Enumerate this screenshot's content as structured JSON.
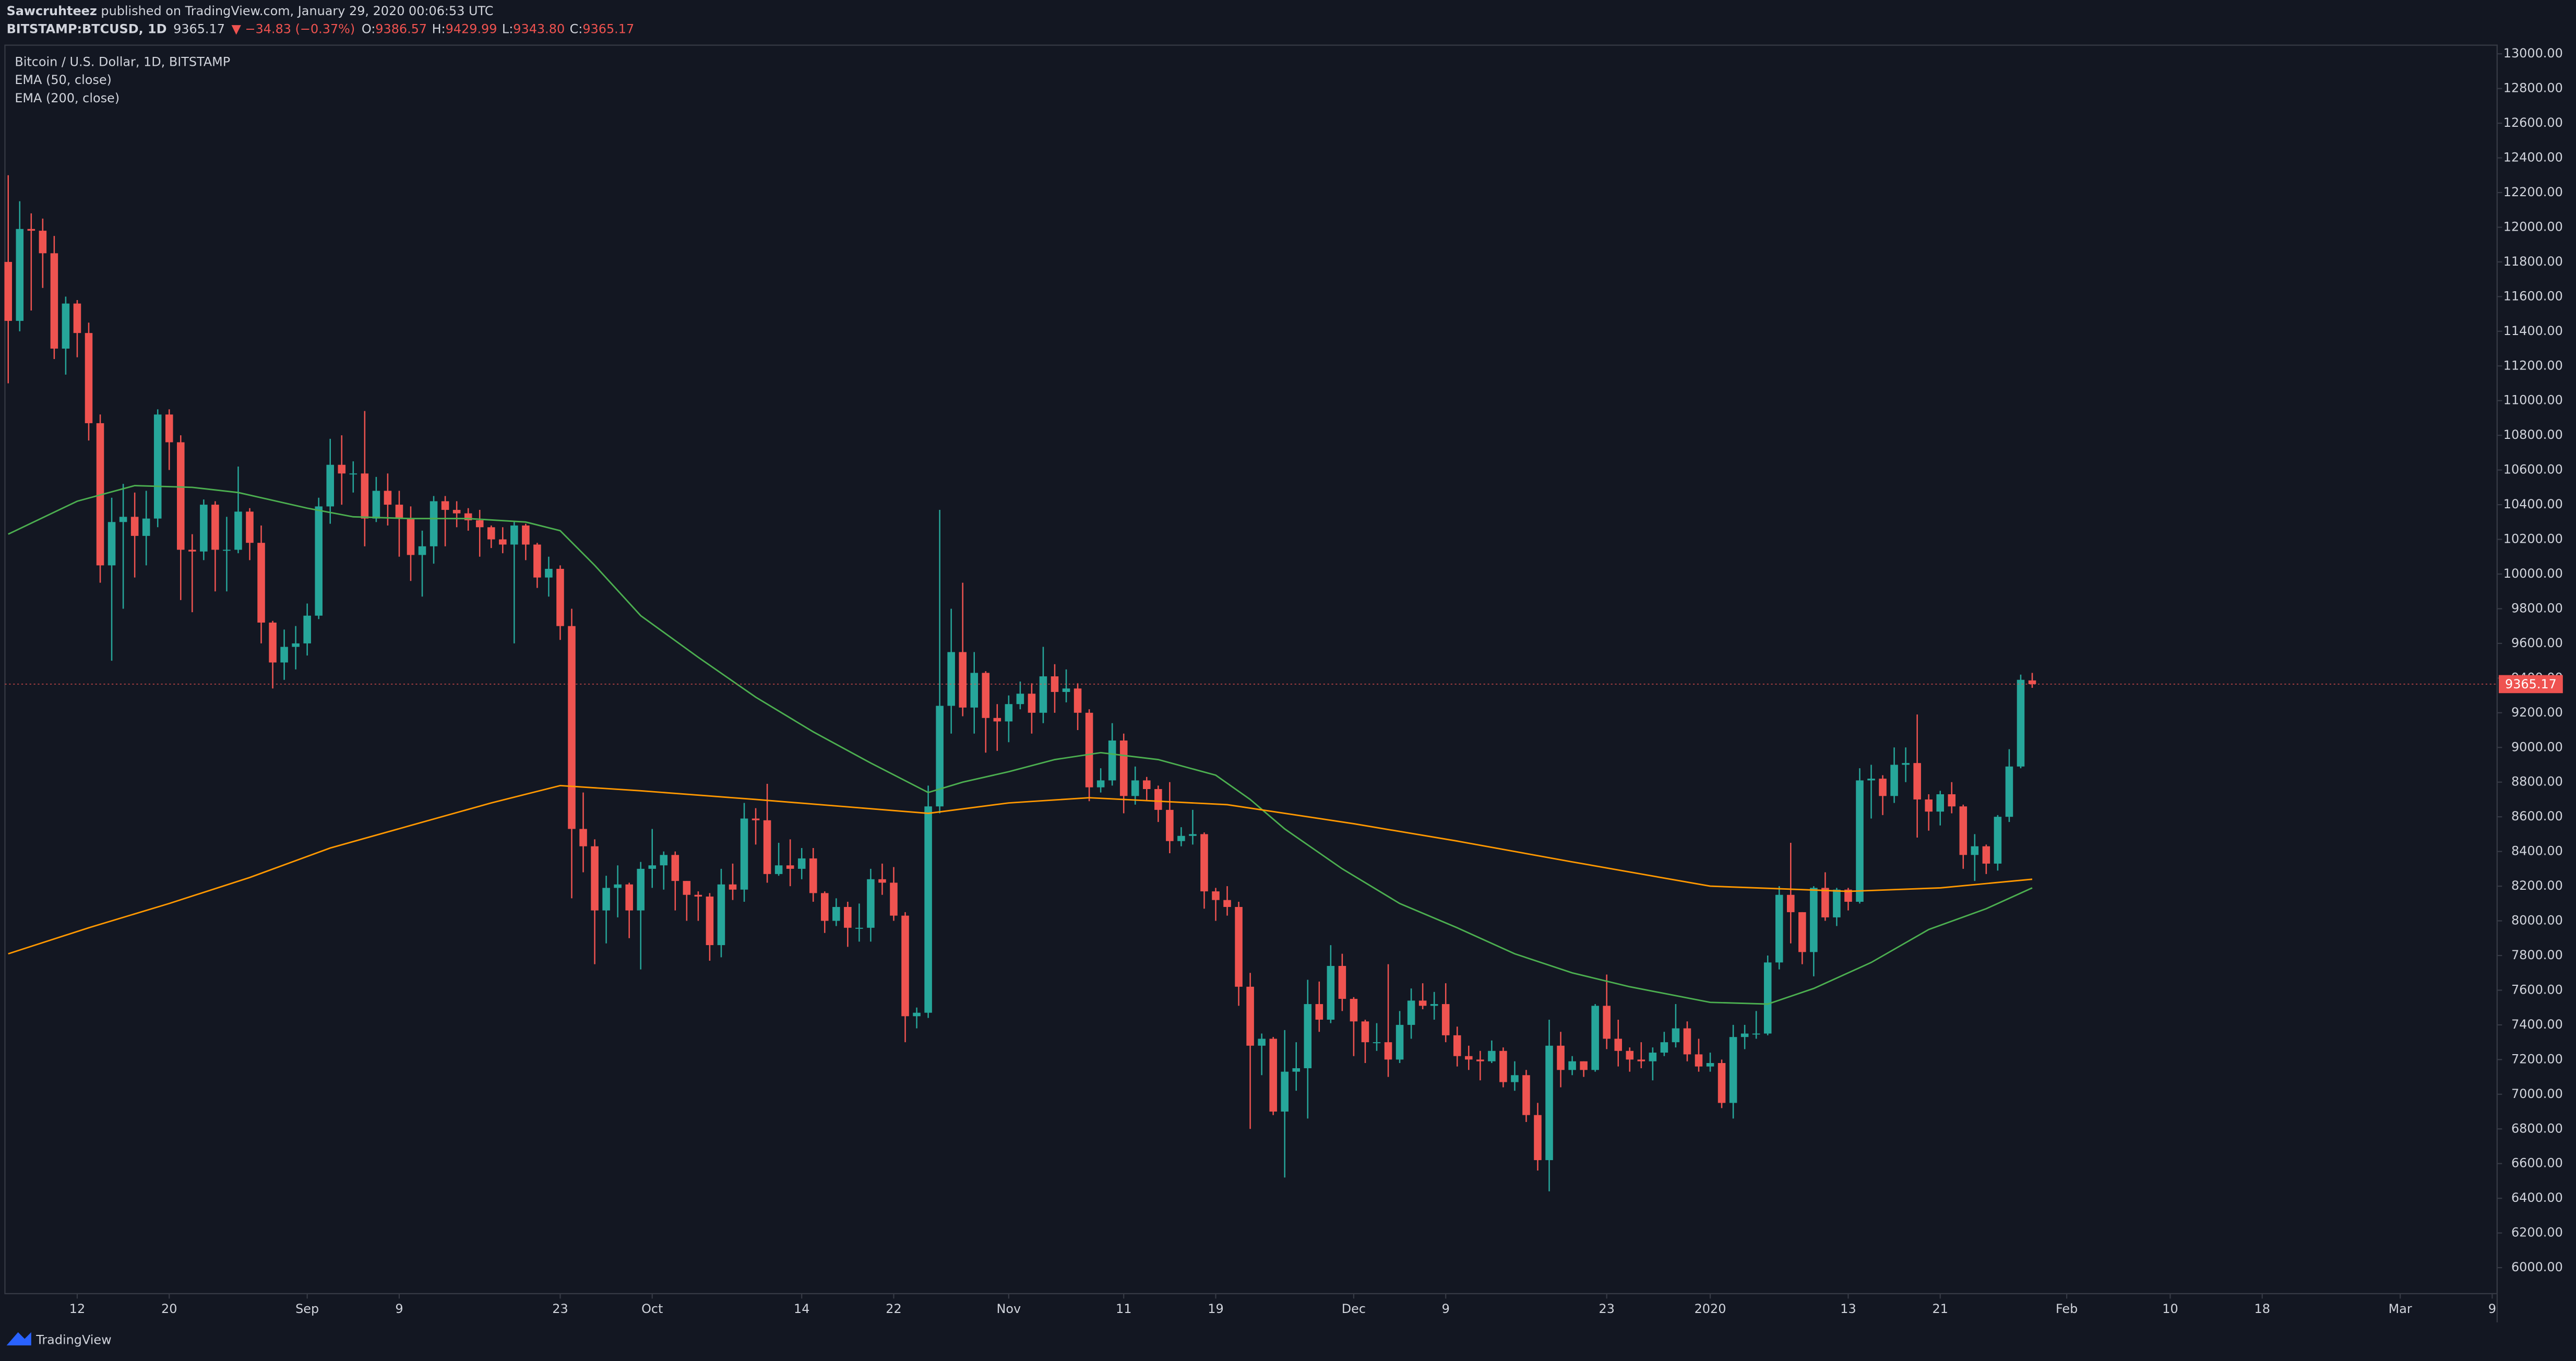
{
  "header": {
    "author": "Sawcruhteez",
    "published": " published on TradingView.com, January 29, 2020 00:06:53 UTC",
    "symbol": "BITSTAMP:BTCUSD, 1D",
    "last": "9365.17",
    "change": "▼ −34.83 (−0.37%)",
    "ohlc": [
      {
        "label": "O:",
        "value": "9386.57"
      },
      {
        "label": "H:",
        "value": "9429.99"
      },
      {
        "label": "L:",
        "value": "9343.80"
      },
      {
        "label": "C:",
        "value": "9365.17"
      }
    ],
    "brand": "TradingView"
  },
  "chart_data": {
    "type": "candlestick",
    "title": "Bitcoin / U.S. Dollar, 1D, BITSTAMP",
    "up_color": "#26a69a",
    "down_color": "#ef5350",
    "grid": false,
    "x": [
      "2019-08-06",
      "2019-08-07",
      "2019-08-08",
      "2019-08-09",
      "2019-08-10",
      "2019-08-11",
      "2019-08-12",
      "2019-08-13",
      "2019-08-14",
      "2019-08-15",
      "2019-08-16",
      "2019-08-17",
      "2019-08-18",
      "2019-08-19",
      "2019-08-20",
      "2019-08-21",
      "2019-08-22",
      "2019-08-23",
      "2019-08-24",
      "2019-08-25",
      "2019-08-26",
      "2019-08-27",
      "2019-08-28",
      "2019-08-29",
      "2019-08-30",
      "2019-08-31",
      "2019-09-01",
      "2019-09-02",
      "2019-09-03",
      "2019-09-04",
      "2019-09-05",
      "2019-09-06",
      "2019-09-07",
      "2019-09-08",
      "2019-09-09",
      "2019-09-10",
      "2019-09-11",
      "2019-09-12",
      "2019-09-13",
      "2019-09-14",
      "2019-09-15",
      "2019-09-16",
      "2019-09-17",
      "2019-09-18",
      "2019-09-19",
      "2019-09-20",
      "2019-09-21",
      "2019-09-22",
      "2019-09-23",
      "2019-09-24",
      "2019-09-25",
      "2019-09-26",
      "2019-09-27",
      "2019-09-28",
      "2019-09-29",
      "2019-09-30",
      "2019-10-01",
      "2019-10-02",
      "2019-10-03",
      "2019-10-04",
      "2019-10-05",
      "2019-10-06",
      "2019-10-07",
      "2019-10-08",
      "2019-10-09",
      "2019-10-10",
      "2019-10-11",
      "2019-10-12",
      "2019-10-13",
      "2019-10-14",
      "2019-10-15",
      "2019-10-16",
      "2019-10-17",
      "2019-10-18",
      "2019-10-19",
      "2019-10-20",
      "2019-10-21",
      "2019-10-22",
      "2019-10-23",
      "2019-10-24",
      "2019-10-25",
      "2019-10-26",
      "2019-10-27",
      "2019-10-28",
      "2019-10-29",
      "2019-10-30",
      "2019-10-31",
      "2019-11-01",
      "2019-11-02",
      "2019-11-03",
      "2019-11-04",
      "2019-11-05",
      "2019-11-06",
      "2019-11-07",
      "2019-11-08",
      "2019-11-09",
      "2019-11-10",
      "2019-11-11",
      "2019-11-12",
      "2019-11-13",
      "2019-11-14",
      "2019-11-15",
      "2019-11-16",
      "2019-11-17",
      "2019-11-18",
      "2019-11-19",
      "2019-11-20",
      "2019-11-21",
      "2019-11-22",
      "2019-11-23",
      "2019-11-24",
      "2019-11-25",
      "2019-11-26",
      "2019-11-27",
      "2019-11-28",
      "2019-11-29",
      "2019-11-30",
      "2019-12-01",
      "2019-12-02",
      "2019-12-03",
      "2019-12-04",
      "2019-12-05",
      "2019-12-06",
      "2019-12-07",
      "2019-12-08",
      "2019-12-09",
      "2019-12-10",
      "2019-12-11",
      "2019-12-12",
      "2019-12-13",
      "2019-12-14",
      "2019-12-15",
      "2019-12-16",
      "2019-12-17",
      "2019-12-18",
      "2019-12-19",
      "2019-12-20",
      "2019-12-21",
      "2019-12-22",
      "2019-12-23",
      "2019-12-24",
      "2019-12-25",
      "2019-12-26",
      "2019-12-27",
      "2019-12-28",
      "2019-12-29",
      "2019-12-30",
      "2019-12-31",
      "2020-01-01",
      "2020-01-02",
      "2020-01-03",
      "2020-01-04",
      "2020-01-05",
      "2020-01-06",
      "2020-01-07",
      "2020-01-08",
      "2020-01-09",
      "2020-01-10",
      "2020-01-11",
      "2020-01-12",
      "2020-01-13",
      "2020-01-14",
      "2020-01-15",
      "2020-01-16",
      "2020-01-17",
      "2020-01-18",
      "2020-01-19",
      "2020-01-20",
      "2020-01-21",
      "2020-01-22",
      "2020-01-23",
      "2020-01-24",
      "2020-01-25",
      "2020-01-26",
      "2020-01-27",
      "2020-01-28",
      "2020-01-29"
    ],
    "open": [
      11800,
      11460,
      11990,
      11980,
      11850,
      11300,
      11560,
      11390,
      10870,
      10050,
      10300,
      10330,
      10220,
      10320,
      10920,
      10760,
      10140,
      10130,
      10400,
      10140,
      10140,
      10360,
      10180,
      9720,
      9490,
      9580,
      9600,
      9760,
      10390,
      10630,
      10580,
      10580,
      10320,
      10480,
      10400,
      10320,
      10110,
      10160,
      10420,
      10370,
      10350,
      10310,
      10270,
      10200,
      10170,
      10280,
      10170,
      9980,
      10030,
      9700,
      8530,
      8430,
      8060,
      8190,
      8210,
      8060,
      8300,
      8320,
      8380,
      8230,
      8150,
      8140,
      7860,
      8210,
      8180,
      8590,
      8580,
      8270,
      8320,
      8300,
      8360,
      8160,
      8000,
      8080,
      7960,
      7960,
      8240,
      8220,
      8030,
      7450,
      7470,
      8660,
      9240,
      9550,
      9230,
      9430,
      9170,
      9150,
      9250,
      9310,
      9200,
      9410,
      9320,
      9340,
      9200,
      8770,
      8810,
      9040,
      8720,
      8810,
      8760,
      8640,
      8460,
      8490,
      8500,
      8170,
      8120,
      8080,
      7620,
      7280,
      7320,
      6900,
      7130,
      7150,
      7520,
      7430,
      7740,
      7550,
      7420,
      7300,
      7300,
      7200,
      7400,
      7540,
      7510,
      7520,
      7340,
      7220,
      7200,
      7190,
      7250,
      7070,
      7110,
      6880,
      6620,
      7280,
      7140,
      7190,
      7140,
      7510,
      7320,
      7250,
      7200,
      7190,
      7240,
      7300,
      7380,
      7230,
      7160,
      7180,
      6950,
      7330,
      7350,
      7350,
      7760,
      8150,
      8050,
      7820,
      8190,
      8020,
      8180,
      8110,
      8810,
      8820,
      8720,
      8900,
      8910,
      8700,
      8630,
      8730,
      8660,
      8380,
      8430,
      8330,
      8600,
      8890,
      9386.57
    ],
    "high": [
      12300,
      12150,
      12080,
      12050,
      11950,
      11600,
      11580,
      11450,
      10920,
      10440,
      10520,
      10470,
      10480,
      10950,
      10950,
      10800,
      10230,
      10430,
      10420,
      10330,
      10620,
      10380,
      10280,
      9730,
      9680,
      9700,
      9830,
      10440,
      10780,
      10800,
      10650,
      10940,
      10560,
      10580,
      10480,
      10390,
      10250,
      10450,
      10450,
      10420,
      10380,
      10370,
      10280,
      10270,
      10300,
      10290,
      10180,
      10100,
      10050,
      9800,
      8740,
      8470,
      8260,
      8320,
      8220,
      8340,
      8530,
      8400,
      8400,
      8230,
      8170,
      8160,
      8300,
      8330,
      8680,
      8650,
      8790,
      8450,
      8470,
      8420,
      8420,
      8170,
      8130,
      8110,
      8100,
      8300,
      8330,
      8310,
      8050,
      7500,
      8780,
      10370,
      9800,
      9950,
      9550,
      9440,
      9250,
      9300,
      9380,
      9370,
      9580,
      9480,
      9450,
      9370,
      9220,
      8880,
      9140,
      9080,
      8890,
      8830,
      8780,
      8800,
      8540,
      8640,
      8510,
      8190,
      8200,
      8110,
      7700,
      7350,
      7330,
      7370,
      7300,
      7660,
      7650,
      7860,
      7810,
      7560,
      7430,
      7410,
      7750,
      7480,
      7610,
      7640,
      7590,
      7640,
      7390,
      7280,
      7250,
      7310,
      7270,
      7190,
      7140,
      6950,
      7430,
      7360,
      7220,
      7190,
      7520,
      7690,
      7430,
      7270,
      7300,
      7270,
      7360,
      7520,
      7420,
      7320,
      7240,
      7200,
      7400,
      7400,
      7480,
      7800,
      8200,
      8450,
      8050,
      8200,
      8280,
      8190,
      8190,
      8880,
      8900,
      8840,
      9000,
      9000,
      9190,
      8730,
      8750,
      8800,
      8670,
      8500,
      8440,
      8610,
      8990,
      9420,
      9429.99
    ],
    "low": [
      11100,
      11400,
      11520,
      11650,
      11240,
      11150,
      11250,
      10770,
      9950,
      9500,
      9800,
      9980,
      10050,
      10270,
      10600,
      9850,
      9780,
      10080,
      9900,
      9900,
      10120,
      10080,
      9600,
      9340,
      9390,
      9450,
      9530,
      9740,
      10290,
      10400,
      10470,
      10160,
      10300,
      10280,
      10100,
      9960,
      9870,
      10060,
      10160,
      10270,
      10250,
      10100,
      10150,
      10120,
      9600,
      10080,
      9920,
      9870,
      9620,
      8130,
      8280,
      7750,
      7870,
      8020,
      7900,
      7720,
      8190,
      8180,
      8060,
      8000,
      8000,
      7770,
      7790,
      8120,
      8110,
      8440,
      8220,
      8260,
      8200,
      8240,
      8110,
      7930,
      7970,
      7850,
      7880,
      7880,
      8150,
      8000,
      7300,
      7380,
      7440,
      8620,
      9080,
      9180,
      9080,
      8970,
      8980,
      9030,
      9220,
      9080,
      9140,
      9200,
      9260,
      9100,
      8690,
      8740,
      8780,
      8620,
      8670,
      8690,
      8570,
      8390,
      8430,
      8440,
      8070,
      8000,
      8030,
      7510,
      6800,
      7110,
      6880,
      6520,
      7020,
      6860,
      7360,
      7410,
      7480,
      7220,
      7180,
      7250,
      7100,
      7180,
      7320,
      7490,
      7430,
      7300,
      7160,
      7140,
      7080,
      7180,
      7040,
      7020,
      6840,
      6560,
      6440,
      7040,
      7110,
      7100,
      7130,
      7260,
      7160,
      7130,
      7150,
      7080,
      7220,
      7270,
      7190,
      7130,
      7130,
      6920,
      6860,
      7260,
      7320,
      7340,
      7720,
      7870,
      7750,
      7680,
      8000,
      7970,
      8060,
      8100,
      8590,
      8610,
      8680,
      8800,
      8480,
      8520,
      8550,
      8620,
      8300,
      8230,
      8270,
      8290,
      8570,
      8880,
      9343.8
    ],
    "close": [
      11460,
      11990,
      11980,
      11850,
      11300,
      11560,
      11390,
      10870,
      10050,
      10300,
      10330,
      10220,
      10320,
      10920,
      10760,
      10140,
      10130,
      10400,
      10140,
      10140,
      10360,
      10180,
      9720,
      9490,
      9580,
      9600,
      9760,
      10390,
      10630,
      10580,
      10580,
      10320,
      10480,
      10400,
      10320,
      10110,
      10160,
      10420,
      10370,
      10350,
      10310,
      10270,
      10200,
      10170,
      10280,
      10170,
      9980,
      10030,
      9700,
      8530,
      8430,
      8060,
      8190,
      8210,
      8060,
      8300,
      8320,
      8380,
      8230,
      8150,
      8140,
      7860,
      8210,
      8180,
      8590,
      8580,
      8270,
      8320,
      8300,
      8360,
      8160,
      8000,
      8080,
      7960,
      7960,
      8240,
      8220,
      8030,
      7450,
      7470,
      8660,
      9240,
      9550,
      9230,
      9430,
      9170,
      9150,
      9250,
      9310,
      9200,
      9410,
      9320,
      9340,
      9200,
      8770,
      8810,
      9040,
      8720,
      8810,
      8760,
      8640,
      8460,
      8490,
      8500,
      8170,
      8120,
      8080,
      7620,
      7280,
      7320,
      6900,
      7130,
      7150,
      7520,
      7430,
      7740,
      7550,
      7420,
      7300,
      7300,
      7200,
      7400,
      7540,
      7510,
      7520,
      7340,
      7220,
      7200,
      7190,
      7250,
      7070,
      7110,
      6880,
      6620,
      7280,
      7140,
      7190,
      7140,
      7510,
      7320,
      7250,
      7200,
      7190,
      7240,
      7300,
      7380,
      7230,
      7160,
      7180,
      6950,
      7330,
      7350,
      7350,
      7760,
      8150,
      8050,
      7820,
      8190,
      8020,
      8180,
      8110,
      8810,
      8820,
      8720,
      8900,
      8910,
      8700,
      8630,
      8730,
      8660,
      8380,
      8430,
      8330,
      8600,
      8890,
      9390,
      9365.17
    ],
    "series": [
      {
        "name": "EMA (50, close)",
        "color": "#4caf50",
        "x": [
          "2019-08-06",
          "2019-08-12",
          "2019-08-17",
          "2019-08-22",
          "2019-08-26",
          "2019-09-01",
          "2019-09-05",
          "2019-09-10",
          "2019-09-15",
          "2019-09-20",
          "2019-09-23",
          "2019-09-26",
          "2019-09-30",
          "2019-10-05",
          "2019-10-10",
          "2019-10-15",
          "2019-10-20",
          "2019-10-25",
          "2019-10-28",
          "2019-11-01",
          "2019-11-05",
          "2019-11-09",
          "2019-11-14",
          "2019-11-19",
          "2019-11-22",
          "2019-11-25",
          "2019-11-30",
          "2019-12-05",
          "2019-12-10",
          "2019-12-15",
          "2019-12-20",
          "2019-12-25",
          "2020-01-01",
          "2020-01-06",
          "2020-01-10",
          "2020-01-15",
          "2020-01-20",
          "2020-01-25",
          "2020-01-29"
        ],
        "values": [
          10230,
          10420,
          10510,
          10500,
          10470,
          10380,
          10330,
          10320,
          10320,
          10300,
          10250,
          10050,
          9760,
          9520,
          9290,
          9090,
          8910,
          8740,
          8800,
          8860,
          8930,
          8970,
          8930,
          8840,
          8700,
          8530,
          8300,
          8100,
          7960,
          7810,
          7700,
          7620,
          7530,
          7520,
          7610,
          7760,
          7950,
          8070,
          8190
        ]
      },
      {
        "name": "EMA (200, close)",
        "color": "#ff9800",
        "x": [
          "2019-08-06",
          "2019-08-13",
          "2019-08-20",
          "2019-08-27",
          "2019-09-03",
          "2019-09-10",
          "2019-09-17",
          "2019-09-23",
          "2019-09-30",
          "2019-10-10",
          "2019-10-25",
          "2019-11-01",
          "2019-11-08",
          "2019-11-20",
          "2019-12-01",
          "2019-12-10",
          "2019-12-20",
          "2020-01-01",
          "2020-01-13",
          "2020-01-21",
          "2020-01-29"
        ],
        "values": [
          7810,
          7960,
          8100,
          8250,
          8420,
          8550,
          8680,
          8780,
          8750,
          8700,
          8620,
          8680,
          8710,
          8670,
          8560,
          8460,
          8340,
          8200,
          8170,
          8190,
          8240
        ]
      }
    ],
    "xlim": [
      "2019-08-06",
      "2020-03-09"
    ],
    "xticks": [
      {
        "value": "2019-08-12",
        "label": "12"
      },
      {
        "value": "2019-08-20",
        "label": "20"
      },
      {
        "value": "2019-09-01",
        "label": "Sep"
      },
      {
        "value": "2019-09-09",
        "label": "9"
      },
      {
        "value": "2019-09-23",
        "label": "23"
      },
      {
        "value": "2019-10-01",
        "label": "Oct"
      },
      {
        "value": "2019-10-14",
        "label": "14"
      },
      {
        "value": "2019-10-22",
        "label": "22"
      },
      {
        "value": "2019-11-01",
        "label": "Nov"
      },
      {
        "value": "2019-11-11",
        "label": "11"
      },
      {
        "value": "2019-11-19",
        "label": "19"
      },
      {
        "value": "2019-12-01",
        "label": "Dec"
      },
      {
        "value": "2019-12-09",
        "label": "9"
      },
      {
        "value": "2019-12-23",
        "label": "23"
      },
      {
        "value": "2020-01-01",
        "label": "2020"
      },
      {
        "value": "2020-01-13",
        "label": "13"
      },
      {
        "value": "2020-01-21",
        "label": "21"
      },
      {
        "value": "2020-02-01",
        "label": "Feb"
      },
      {
        "value": "2020-02-10",
        "label": "10"
      },
      {
        "value": "2020-02-18",
        "label": "18"
      },
      {
        "value": "2020-03-01",
        "label": "Mar"
      },
      {
        "value": "2020-03-09",
        "label": "9"
      }
    ],
    "ylim": [
      5850,
      13050
    ],
    "yticks": [
      {
        "value": 6000,
        "label": "6000.00"
      },
      {
        "value": 6200,
        "label": "6200.00"
      },
      {
        "value": 6400,
        "label": "6400.00"
      },
      {
        "value": 6600,
        "label": "6600.00"
      },
      {
        "value": 6800,
        "label": "6800.00"
      },
      {
        "value": 7000,
        "label": "7000.00"
      },
      {
        "value": 7200,
        "label": "7200.00"
      },
      {
        "value": 7400,
        "label": "7400.00"
      },
      {
        "value": 7600,
        "label": "7600.00"
      },
      {
        "value": 7800,
        "label": "7800.00"
      },
      {
        "value": 8000,
        "label": "8000.00"
      },
      {
        "value": 8200,
        "label": "8200.00"
      },
      {
        "value": 8400,
        "label": "8400.00"
      },
      {
        "value": 8600,
        "label": "8600.00"
      },
      {
        "value": 8800,
        "label": "8800.00"
      },
      {
        "value": 9000,
        "label": "9000.00"
      },
      {
        "value": 9200,
        "label": "9200.00"
      },
      {
        "value": 9400,
        "label": "9400.00"
      },
      {
        "value": 9600,
        "label": "9600.00"
      },
      {
        "value": 9800,
        "label": "9800.00"
      },
      {
        "value": 10000,
        "label": "10000.00"
      },
      {
        "value": 10200,
        "label": "10200.00"
      },
      {
        "value": 10400,
        "label": "10400.00"
      },
      {
        "value": 10600,
        "label": "10600.00"
      },
      {
        "value": 10800,
        "label": "10800.00"
      },
      {
        "value": 11000,
        "label": "11000.00"
      },
      {
        "value": 11200,
        "label": "11200.00"
      },
      {
        "value": 11400,
        "label": "11400.00"
      },
      {
        "value": 11600,
        "label": "11600.00"
      },
      {
        "value": 11800,
        "label": "11800.00"
      },
      {
        "value": 12000,
        "label": "12000.00"
      },
      {
        "value": 12200,
        "label": "12200.00"
      },
      {
        "value": 12400,
        "label": "12400.00"
      },
      {
        "value": 12600,
        "label": "12600.00"
      },
      {
        "value": 12800,
        "label": "12800.00"
      },
      {
        "value": 13000,
        "label": "13000.00"
      }
    ]
  }
}
